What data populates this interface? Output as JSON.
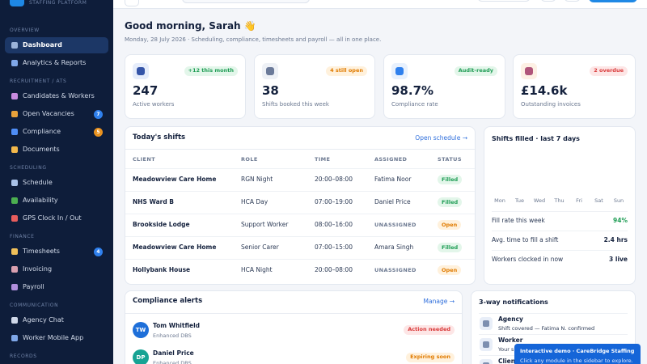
{
  "sidebar": {
    "tagline": "STAFFING PLATFORM",
    "sections": [
      {
        "title": "OVERVIEW",
        "items": [
          {
            "label": "Dashboard"
          },
          {
            "label": "Analytics & Reports"
          }
        ]
      },
      {
        "title": "RECRUITMENT / ATS",
        "items": [
          {
            "label": "Candidates & Workers"
          },
          {
            "label": "Open Vacancies",
            "badge": "7"
          },
          {
            "label": "Compliance",
            "badge": "5"
          },
          {
            "label": "Documents"
          }
        ]
      },
      {
        "title": "SCHEDULING",
        "items": [
          {
            "label": "Schedule"
          },
          {
            "label": "Availability"
          },
          {
            "label": "GPS Clock In / Out"
          }
        ]
      },
      {
        "title": "FINANCE",
        "items": [
          {
            "label": "Timesheets",
            "badge": "4"
          },
          {
            "label": "Invoicing"
          },
          {
            "label": "Payroll"
          }
        ]
      },
      {
        "title": "COMMUNICATION",
        "items": [
          {
            "label": "Agency Chat"
          },
          {
            "label": "Worker Mobile App"
          }
        ]
      },
      {
        "title": "RECORDS",
        "items": []
      }
    ]
  },
  "header": {
    "greeting": "Good morning, Sarah 👋",
    "subtitle": "Monday, 28 July 2026 · Scheduling, compliance, timesheets and payroll — all in one place."
  },
  "stats": [
    {
      "value": "247",
      "label": "Active workers",
      "badge": "+12 this month"
    },
    {
      "value": "38",
      "label": "Shifts booked this week",
      "badge": "4 still open"
    },
    {
      "value": "98.7%",
      "label": "Compliance rate",
      "badge": "Audit-ready"
    },
    {
      "value": "£14.6k",
      "label": "Outstanding invoices",
      "badge": "2 overdue"
    }
  ],
  "shifts": {
    "title": "Today's shifts",
    "link": "Open schedule →",
    "columns": [
      "CLIENT",
      "ROLE",
      "TIME",
      "ASSIGNED",
      "STATUS"
    ],
    "rows": [
      [
        "Meadowview Care Home",
        "RGN Night",
        "20:00–08:00",
        "Fatima Noor",
        "Filled"
      ],
      [
        "NHS Ward B",
        "HCA Day",
        "07:00–19:00",
        "Daniel Price",
        "Filled"
      ],
      [
        "Brookside Lodge",
        "Support Worker",
        "08:00–16:00",
        "UNASSIGNED",
        "Open"
      ],
      [
        "Meadowview Care Home",
        "Senior Carer",
        "07:00–15:00",
        "Amara Singh",
        "Filled"
      ],
      [
        "Hollybank House",
        "HCA Night",
        "20:00–08:00",
        "UNASSIGNED",
        "Open"
      ]
    ]
  },
  "fill": {
    "title": "Shifts filled · last 7 days",
    "days": [
      "Mon",
      "Tue",
      "Wed",
      "Thu",
      "Fri",
      "Sat",
      "Sun"
    ],
    "metrics": [
      {
        "label": "Fill rate this week",
        "value": "94%"
      },
      {
        "label": "Avg. time to fill a shift",
        "value": "2.4 hrs"
      },
      {
        "label": "Workers clocked in now",
        "value": "3 live"
      }
    ]
  },
  "alerts": {
    "title": "Compliance alerts",
    "link": "Manage →",
    "items": [
      {
        "initials": "TW",
        "name": "Tom Whitfield",
        "detail": "Enhanced DBS",
        "status": "Action needed"
      },
      {
        "initials": "DP",
        "name": "Daniel Price",
        "detail": "Enhanced DBS",
        "status": "Expiring soon"
      }
    ]
  },
  "notifications": {
    "title": "3-way notifications",
    "items": [
      {
        "title": "Agency",
        "detail": "Shift covered — Fatima N. confirmed"
      },
      {
        "title": "Worker",
        "detail": "Your s"
      },
      {
        "title": "Client",
        "detail": ""
      }
    ]
  },
  "toast": {
    "title": "Interactive demo · CareBridge Staffing",
    "message": "Click any module in the sidebar to explore."
  }
}
